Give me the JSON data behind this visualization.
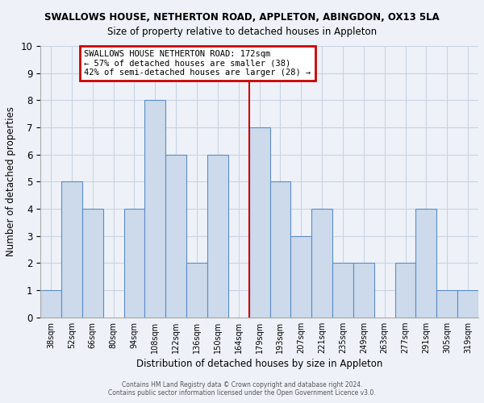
{
  "title": "SWALLOWS HOUSE, NETHERTON ROAD, APPLETON, ABINGDON, OX13 5LA",
  "subtitle": "Size of property relative to detached houses in Appleton",
  "xlabel": "Distribution of detached houses by size in Appleton",
  "ylabel": "Number of detached properties",
  "bin_labels": [
    "38sqm",
    "52sqm",
    "66sqm",
    "80sqm",
    "94sqm",
    "108sqm",
    "122sqm",
    "136sqm",
    "150sqm",
    "164sqm",
    "179sqm",
    "193sqm",
    "207sqm",
    "221sqm",
    "235sqm",
    "249sqm",
    "263sqm",
    "277sqm",
    "291sqm",
    "305sqm",
    "319sqm"
  ],
  "bar_values": [
    1,
    5,
    4,
    0,
    4,
    8,
    6,
    2,
    6,
    0,
    7,
    5,
    3,
    4,
    2,
    2,
    0,
    2,
    4,
    1,
    1
  ],
  "bar_color": "#ccdaeb",
  "bar_edgecolor": "#5b8cc8",
  "vline_x_index": 10,
  "vline_color": "#cc0000",
  "ylim": [
    0,
    10
  ],
  "yticks": [
    0,
    1,
    2,
    3,
    4,
    5,
    6,
    7,
    8,
    9,
    10
  ],
  "annotation_title": "SWALLOWS HOUSE NETHERTON ROAD: 172sqm",
  "annotation_line1": "← 57% of detached houses are smaller (38)",
  "annotation_line2": "42% of semi-detached houses are larger (28) →",
  "annotation_box_edgecolor": "#cc0000",
  "footer_line1": "Contains HM Land Registry data © Crown copyright and database right 2024.",
  "footer_line2": "Contains public sector information licensed under the Open Government Licence v3.0.",
  "grid_color": "#c8d4e4",
  "background_color": "#eef2f8"
}
